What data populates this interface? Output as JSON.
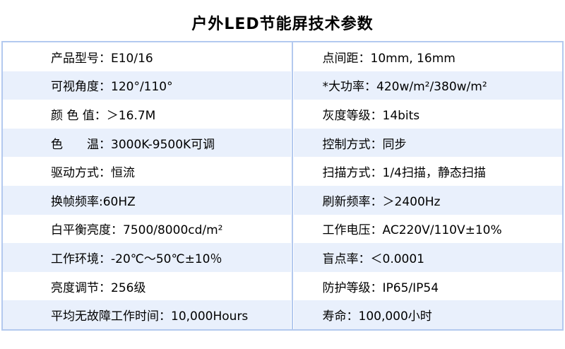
{
  "title": "户外LED节能屏技术参数",
  "colors": {
    "row_alt_bg": "#e9f0fc",
    "border_color": "#b3c9ef",
    "text_color": "#000000",
    "page_bg": "#ffffff"
  },
  "table": {
    "rows": [
      {
        "left": "产品型号：E10/16",
        "right": "点间距：10mm, 16mm"
      },
      {
        "left": "可视角度：120°/110°",
        "right": "*大功率：420w/m²/380w/m²"
      },
      {
        "left": "颜 色 值：＞16.7M",
        "right": "灰度等级：14bits"
      },
      {
        "left": "色　　温：3000K-9500K可调",
        "right": "控制方式：同步"
      },
      {
        "left": "驱动方式：恒流",
        "right": "扫描方式：1/4扫描，静态扫描"
      },
      {
        "left": "换帧频率:60HZ",
        "right": "刷新频率：＞2400Hz"
      },
      {
        "left": "白平衡亮度：7500/8000cd/m²",
        "right": "工作电压：AC220V/110V±10%"
      },
      {
        "left": "工作环境：-20℃～50℃±10％",
        "right": "盲点率：＜0.0001"
      },
      {
        "left": "亮度调节：256级",
        "right": "防护等级：IP65/IP54"
      },
      {
        "left": "平均无故障工作时间：10,000Hours",
        "right": "寿命：100,000小时"
      }
    ]
  }
}
